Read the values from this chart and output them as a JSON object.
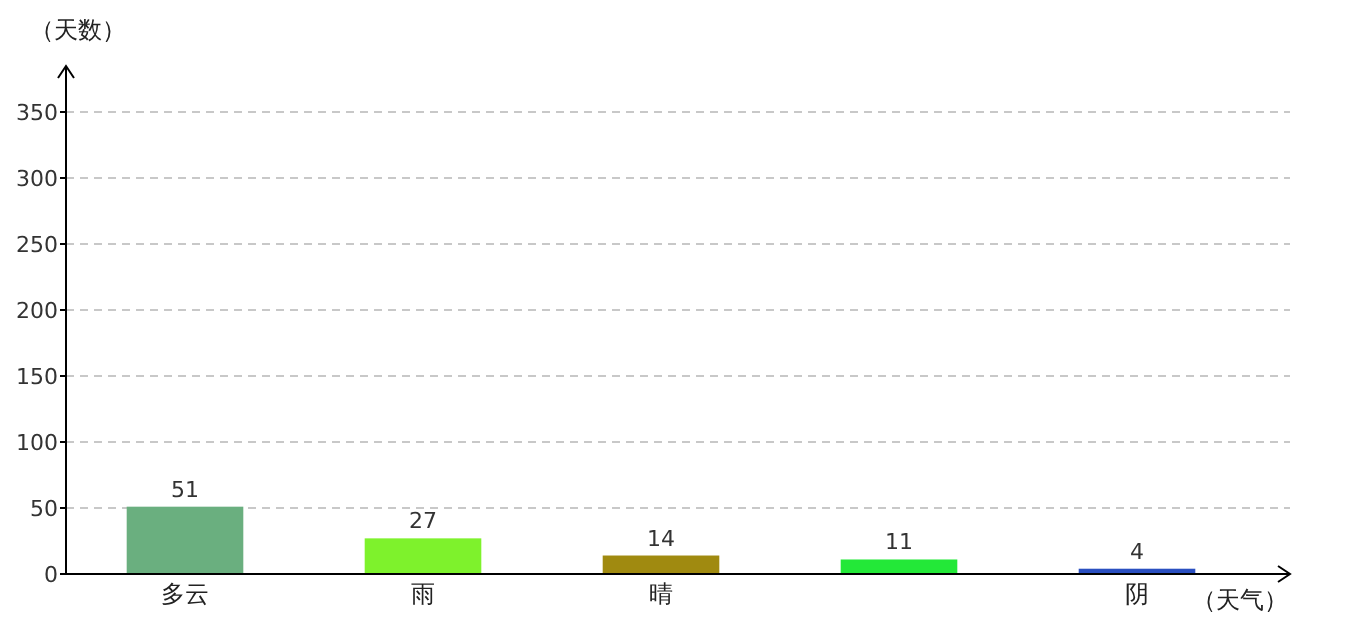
{
  "chart_data": {
    "type": "bar",
    "ylabel": "（天数）",
    "xlabel": "（天气）",
    "categories": [
      "多云",
      "雨",
      "晴",
      null,
      "阴"
    ],
    "values": [
      51,
      27,
      14,
      11,
      4
    ],
    "colors": [
      "#6aaf7f",
      "#7ef22c",
      "#a08a10",
      "#23e838",
      "#2a4fc0"
    ],
    "ylim": [
      0,
      350
    ],
    "yticks": [
      0,
      50,
      100,
      150,
      200,
      250,
      300,
      350
    ],
    "grid": "y",
    "data_labels": true
  }
}
